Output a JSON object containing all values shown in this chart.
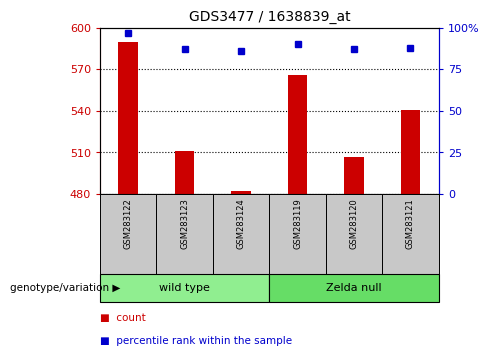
{
  "title": "GDS3477 / 1638839_at",
  "samples": [
    "GSM283122",
    "GSM283123",
    "GSM283124",
    "GSM283119",
    "GSM283120",
    "GSM283121"
  ],
  "groups": [
    {
      "label": "wild type",
      "indices": [
        0,
        1,
        2
      ],
      "color": "#90EE90"
    },
    {
      "label": "Zelda null",
      "indices": [
        3,
        4,
        5
      ],
      "color": "#66DD66"
    }
  ],
  "count_values": [
    590,
    511,
    482,
    566,
    507,
    541
  ],
  "percentile_values": [
    97,
    87,
    86,
    90,
    87,
    88
  ],
  "ylim_left": [
    480,
    600
  ],
  "ylim_right": [
    0,
    100
  ],
  "yticks_left": [
    480,
    510,
    540,
    570,
    600
  ],
  "yticks_right": [
    0,
    25,
    50,
    75,
    100
  ],
  "ytick_labels_right": [
    "0",
    "25",
    "50",
    "75",
    "100%"
  ],
  "baseline": 480,
  "bar_color": "#CC0000",
  "dot_color": "#0000CC",
  "axis_color_left": "#CC0000",
  "axis_color_right": "#0000CC",
  "bg_color_plot": "#FFFFFF",
  "bg_color_xlabel": "#C8C8C8",
  "legend_count_color": "#CC0000",
  "legend_pct_color": "#0000CC",
  "bar_width": 0.35
}
